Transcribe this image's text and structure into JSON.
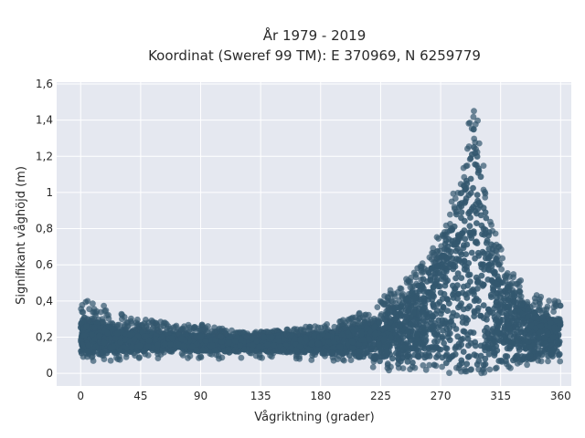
{
  "chart_data": {
    "type": "scatter",
    "title_line1": "År 1979 - 2019",
    "title_line2": "Koordinat (Sweref 99 TM): E 370969, N 6259779",
    "xlabel": "Vågriktning (grader)",
    "ylabel": "Signifikant våghöjd (m)",
    "xlim": [
      -18,
      368
    ],
    "ylim": [
      -0.07,
      1.61
    ],
    "x_ticks": [
      0,
      45,
      90,
      135,
      180,
      225,
      270,
      315,
      360
    ],
    "x_tick_labels": [
      "0",
      "45",
      "90",
      "135",
      "180",
      "225",
      "270",
      "315",
      "360"
    ],
    "y_ticks": [
      0,
      0.2,
      0.4,
      0.6,
      0.8,
      1.0,
      1.2,
      1.4,
      1.6
    ],
    "y_tick_labels": [
      "0",
      "0,2",
      "0,4",
      "0,6",
      "0,8",
      "1",
      "1,2",
      "1,4",
      "1,6"
    ],
    "grid": true,
    "marker_color": "#33576e",
    "background_color": "#e5e8f0",
    "envelope": {
      "direction_deg": [
        0,
        10,
        20,
        30,
        45,
        60,
        90,
        120,
        150,
        180,
        200,
        220,
        235,
        250,
        260,
        270,
        280,
        290,
        295,
        300,
        305,
        310,
        320,
        330,
        340,
        350,
        360
      ],
      "upper_hs_m": [
        0.4,
        0.41,
        0.38,
        0.33,
        0.3,
        0.29,
        0.27,
        0.23,
        0.24,
        0.27,
        0.3,
        0.38,
        0.48,
        0.57,
        0.63,
        0.8,
        1.02,
        1.35,
        1.52,
        1.3,
        0.99,
        0.82,
        0.58,
        0.52,
        0.45,
        0.41,
        0.4
      ],
      "core_upper_hs_m": [
        0.3,
        0.29,
        0.26,
        0.24,
        0.23,
        0.22,
        0.21,
        0.2,
        0.21,
        0.22,
        0.24,
        0.28,
        0.36,
        0.46,
        0.55,
        0.68,
        0.86,
        1.1,
        1.28,
        1.12,
        0.85,
        0.66,
        0.48,
        0.4,
        0.34,
        0.3,
        0.3
      ],
      "lower_hs_m": [
        0.1,
        0.1,
        0.11,
        0.11,
        0.12,
        0.12,
        0.12,
        0.12,
        0.12,
        0.11,
        0.1,
        0.07,
        0.05,
        0.05,
        0.05,
        0.04,
        0.03,
        0.03,
        0.03,
        0.03,
        0.04,
        0.05,
        0.06,
        0.07,
        0.08,
        0.09,
        0.1
      ]
    }
  }
}
